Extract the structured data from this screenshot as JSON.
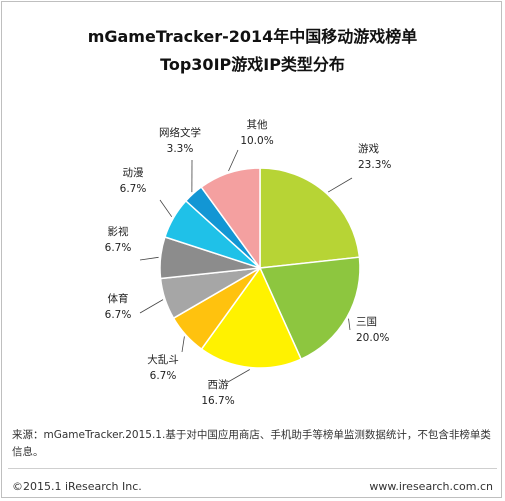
{
  "chart_data": {
    "type": "pie",
    "title": "mGameTracker-2014年中国移动游戏榜单",
    "subtitle": "Top30IP游戏IP类型分布",
    "slices": [
      {
        "label": "游戏",
        "value": 23.3,
        "display": "23.3%",
        "color": "#b7d435"
      },
      {
        "label": "三国",
        "value": 20.0,
        "display": "20.0%",
        "color": "#8dc63f"
      },
      {
        "label": "西游",
        "value": 16.7,
        "display": "16.7%",
        "color": "#fff200"
      },
      {
        "label": "大乱斗",
        "value": 6.7,
        "display": "6.7%",
        "color": "#ffc20e"
      },
      {
        "label": "体育",
        "value": 6.7,
        "display": "6.7%",
        "color": "#a6a6a6"
      },
      {
        "label": "影视",
        "value": 6.7,
        "display": "6.7%",
        "color": "#8c8c8c"
      },
      {
        "label": "动漫",
        "value": 6.7,
        "display": "6.7%",
        "color": "#1fc1e8"
      },
      {
        "label": "网络文学",
        "value": 3.3,
        "display": "3.3%",
        "color": "#1296d4"
      },
      {
        "label": "其他",
        "value": 10.0,
        "display": "10.0%",
        "color": "#f4a0a0"
      }
    ]
  },
  "footer": {
    "source": "来源：mGameTracker.2015.1.基于对中国应用商店、手机助手等榜单监测数据统计，不包含非榜单类信息。",
    "copyright": "©2015.1 iResearch Inc.",
    "website": "www.iresearch.com.cn"
  }
}
